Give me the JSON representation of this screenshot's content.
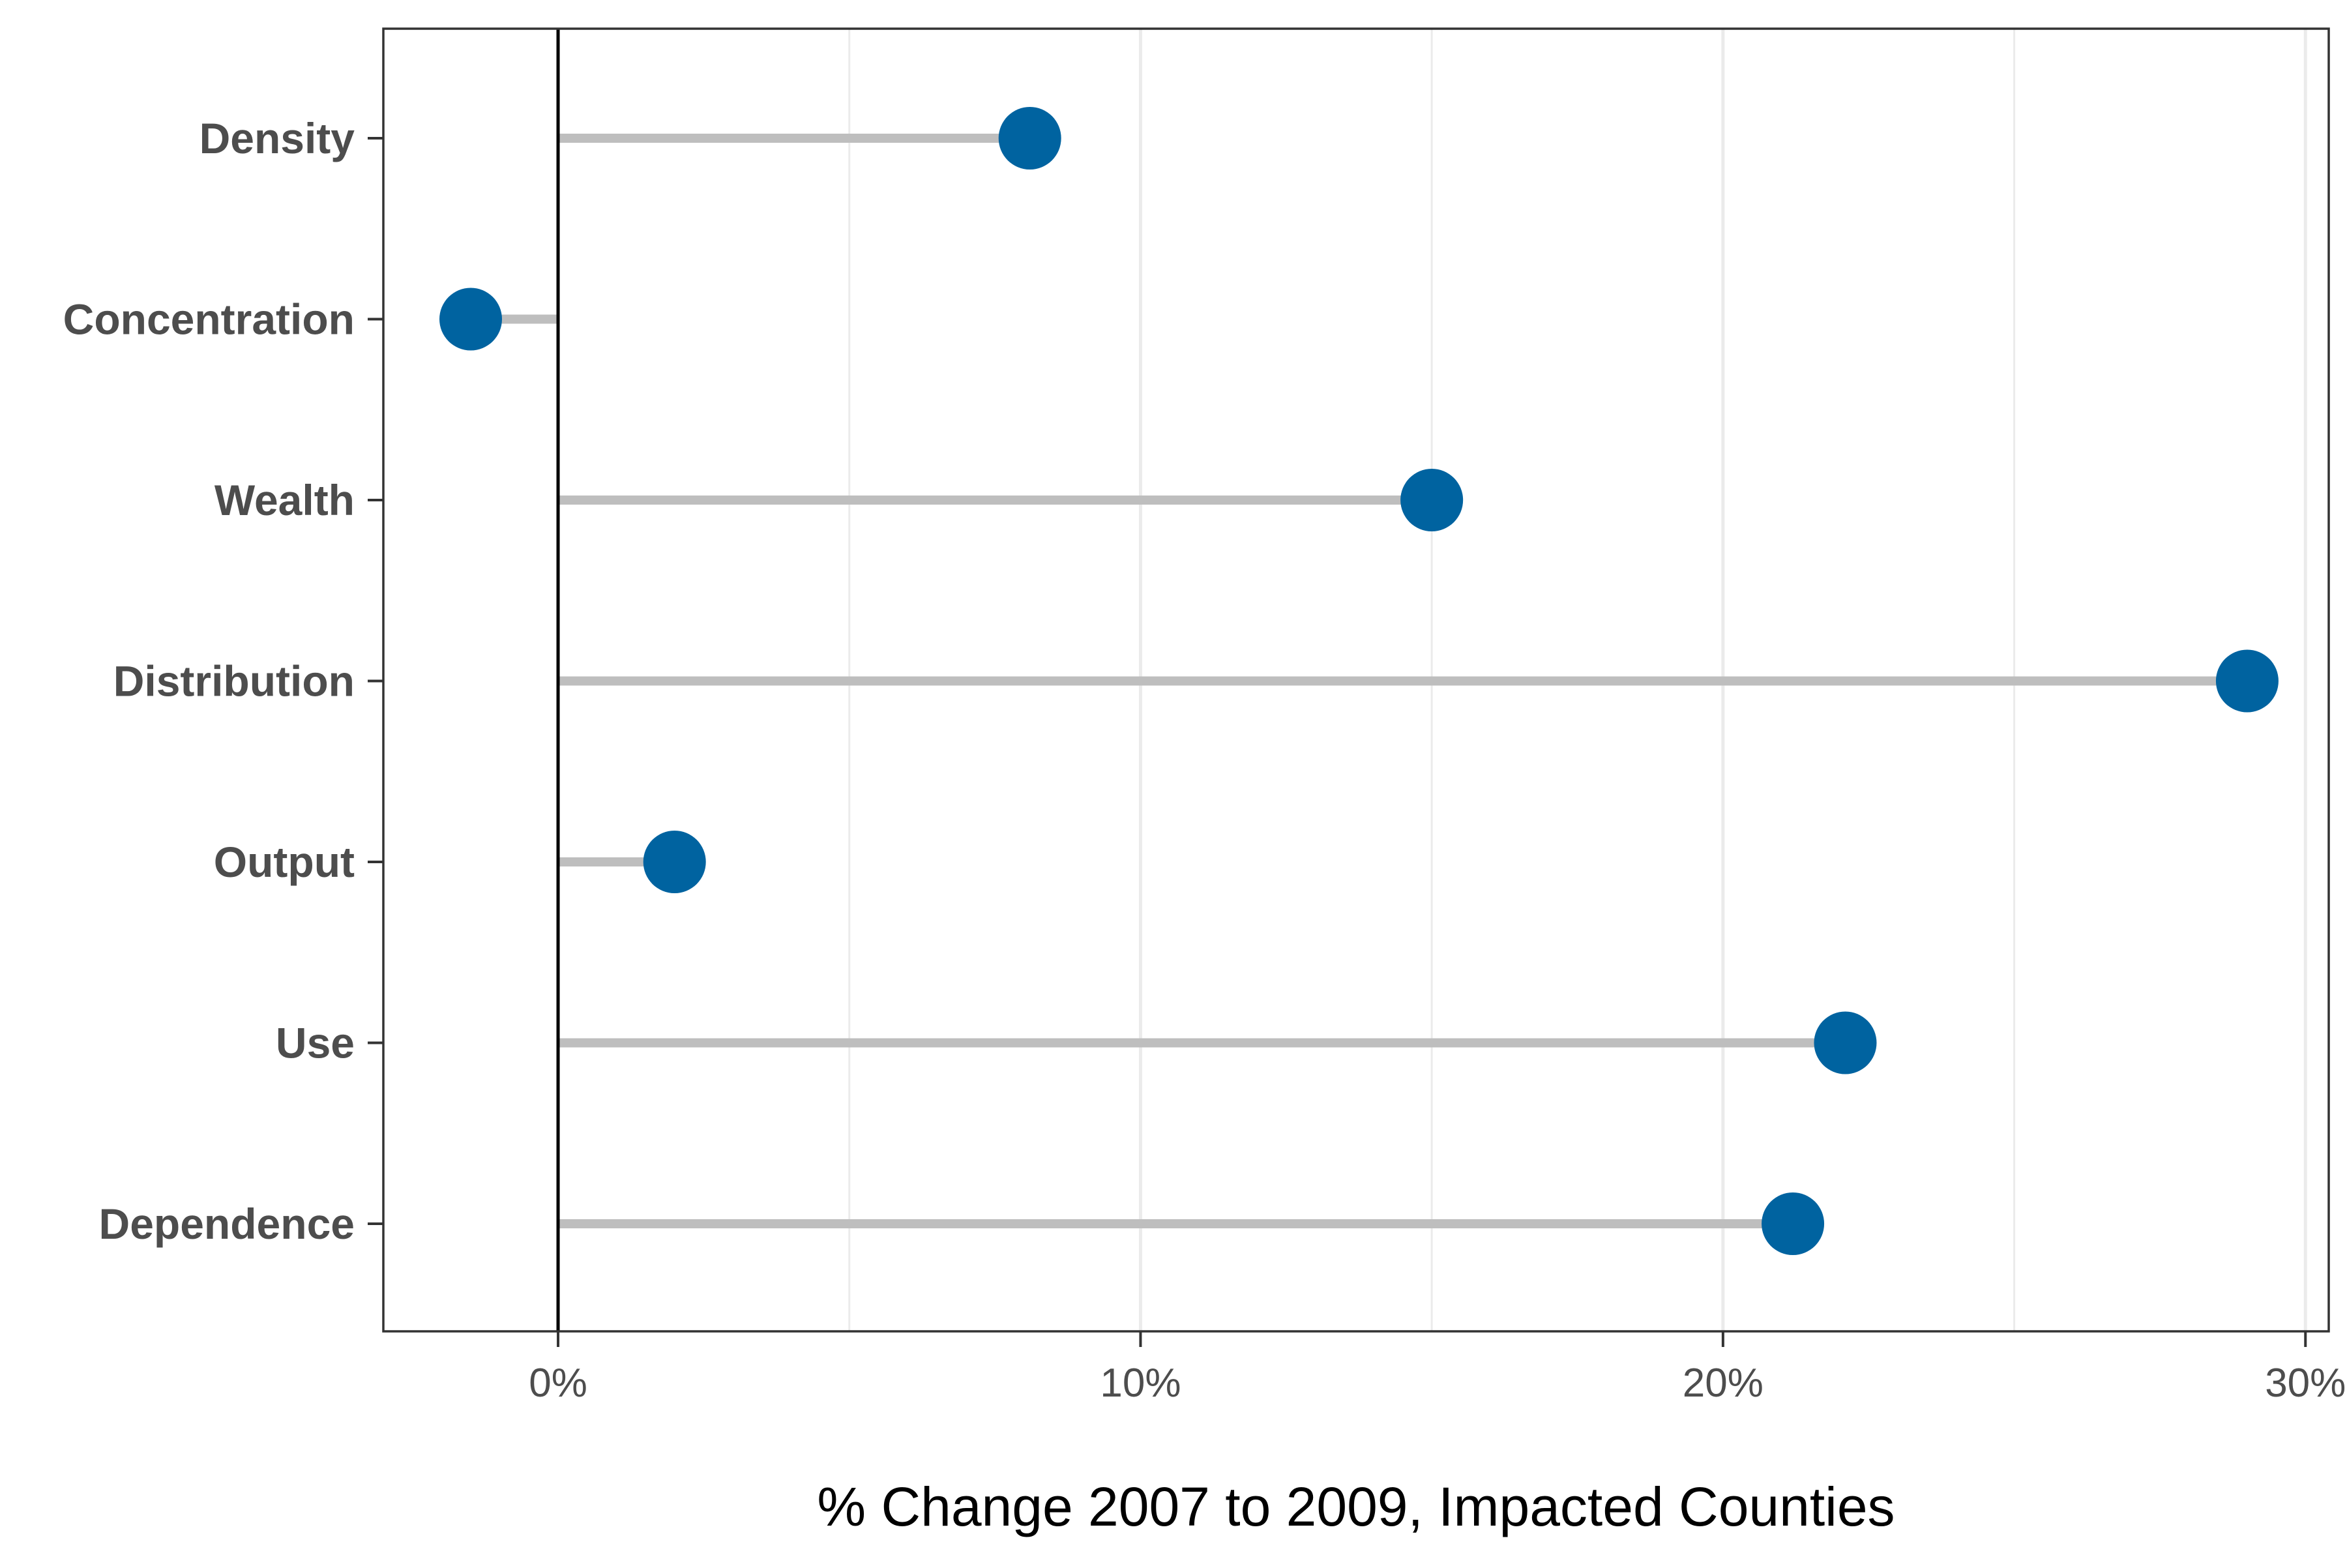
{
  "chart_data": {
    "type": "lollipop",
    "title": "",
    "xlabel": "% Change 2007 to 2009, Impacted Counties",
    "ylabel": "",
    "categories": [
      "Density",
      "Concentration",
      "Wealth",
      "Distribution",
      "Output",
      "Use",
      "Dependence"
    ],
    "values": [
      8.1,
      -1.5,
      15.0,
      29.0,
      2.0,
      22.1,
      21.2
    ],
    "x_ticks": [
      0,
      10,
      20,
      30
    ],
    "x_tick_labels": [
      "0%",
      "10%",
      "20%",
      "30%"
    ],
    "xlim": [
      -3.0,
      30.4
    ],
    "minor_gridlines": [
      5,
      15,
      25
    ],
    "grid": "vertical-only",
    "zero_line": true,
    "legend": "none",
    "colors": {
      "point": "#0063A0",
      "stem": "#BEBEBE",
      "zero_line": "#000000",
      "grid": "#EBEBEB",
      "panel_border": "#333333"
    }
  }
}
